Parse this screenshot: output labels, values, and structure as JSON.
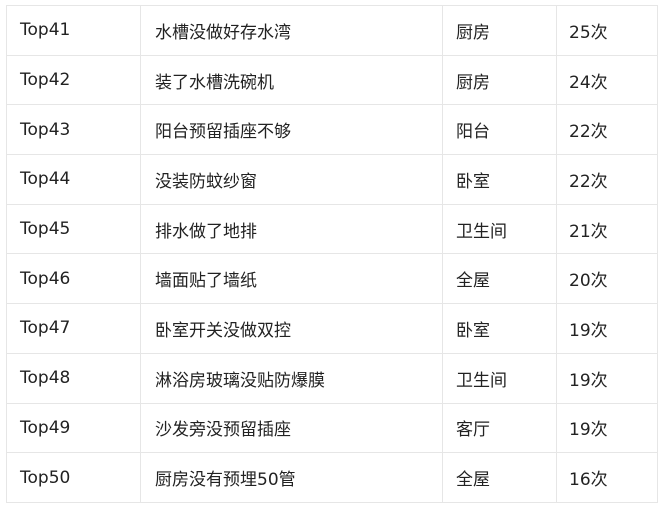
{
  "table": {
    "rows": [
      {
        "rank": "Top41",
        "item": "水槽没做好存水湾",
        "room": "厨房",
        "count": "25次"
      },
      {
        "rank": "Top42",
        "item": "装了水槽洗碗机",
        "room": "厨房",
        "count": "24次"
      },
      {
        "rank": "Top43",
        "item": "阳台预留插座不够",
        "room": "阳台",
        "count": "22次"
      },
      {
        "rank": "Top44",
        "item": "没装防蚊纱窗",
        "room": "卧室",
        "count": "22次"
      },
      {
        "rank": "Top45",
        "item": "排水做了地排",
        "room": "卫生间",
        "count": "21次"
      },
      {
        "rank": "Top46",
        "item": "墙面贴了墙纸",
        "room": "全屋",
        "count": "20次"
      },
      {
        "rank": "Top47",
        "item": "卧室开关没做双控",
        "room": "卧室",
        "count": "19次"
      },
      {
        "rank": "Top48",
        "item": "淋浴房玻璃没贴防爆膜",
        "room": "卫生间",
        "count": "19次"
      },
      {
        "rank": "Top49",
        "item": "沙发旁没预留插座",
        "room": "客厅",
        "count": "19次"
      },
      {
        "rank": "Top50",
        "item": "厨房没有预埋50管",
        "room": "全屋",
        "count": "16次"
      }
    ]
  }
}
